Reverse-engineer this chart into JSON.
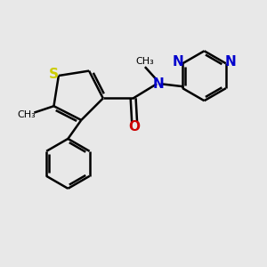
{
  "background_color": "#e8e8e8",
  "bond_color": "#000000",
  "bond_width": 1.8,
  "S_color": "#cccc00",
  "N_color": "#0000cc",
  "O_color": "#cc0000",
  "figsize": [
    3.0,
    3.0
  ],
  "dpi": 100,
  "xlim": [
    0,
    10
  ],
  "ylim": [
    0,
    10
  ],
  "font_size_atom": 11,
  "font_size_small": 8
}
